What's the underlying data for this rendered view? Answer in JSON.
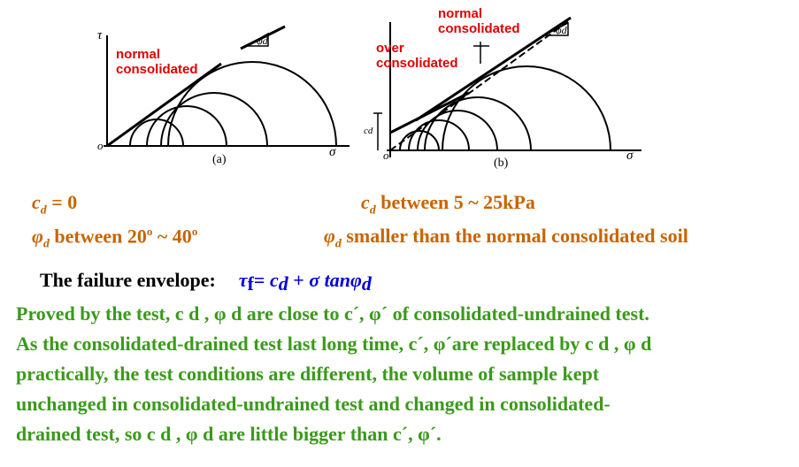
{
  "colors": {
    "orange": "#c86400",
    "green": "#3a9a1a",
    "blue": "#0000dd",
    "red": "#e00000"
  },
  "diagram_a": {
    "axis_y": "τ",
    "axis_x": "σ",
    "origin": "o",
    "caption": "(a)",
    "slope_label": "φd",
    "annotation_line1": "normal",
    "annotation_line2": "consolidated"
  },
  "diagram_b": {
    "axis_x": "σ",
    "origin": "o",
    "caption": "(b)",
    "slope_label": "φd",
    "intercept_label": "cd",
    "annotation_normal_line1": "normal",
    "annotation_normal_line2": "consolidated",
    "annotation_over_line1": "over",
    "annotation_over_line2": "consolidated"
  },
  "left_results": {
    "cd_sym": "c",
    "cd_sub": "d",
    "cd_value": " = 0",
    "phi_sym": "φ",
    "phi_sub": "d",
    "phi_text": " between 20",
    "phi_deg1": "o",
    "phi_mid": " ~ 40",
    "phi_deg2": "o"
  },
  "right_results": {
    "cd_sym": "c",
    "cd_sub": "d",
    "cd_text": " between 5 ~ 25kPa",
    "phi_sym": "φ",
    "phi_sub": "d",
    "phi_text": " smaller than the normal consolidated soil"
  },
  "envelope": {
    "label": "The failure envelope:",
    "tau": "τ",
    "tau_sub": "f",
    "eq": "= ",
    "c": "c",
    "c_sub": "d",
    "plus": " +  ",
    "sigma_tan": "σ tanφ",
    "phi_sub": "d"
  },
  "paragraph": {
    "line1": "Proved by the test, c d , φ d are close to c´, φ´ of consolidated-undrained test.",
    "line2": "As the consolidated-drained test last long time, c´, φ´are replaced by c d , φ d",
    "line3": "practically, the test conditions are different, the volume of sample kept",
    "line4": "unchanged in consolidated-undrained test and changed in consolidated-",
    "line5": "drained test, so c d , φ d are little bigger than c´, φ´."
  }
}
